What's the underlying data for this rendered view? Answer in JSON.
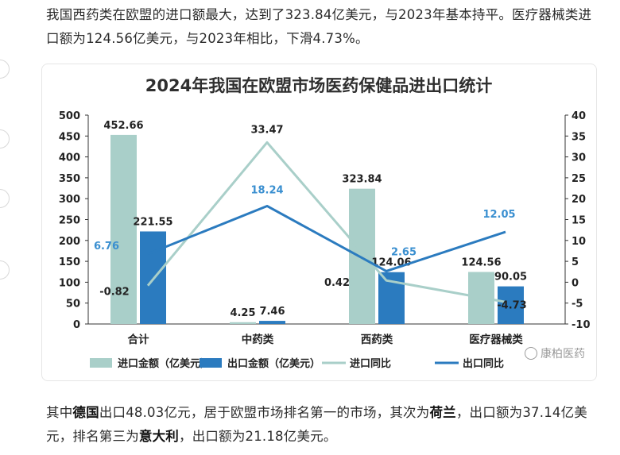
{
  "article": {
    "para_top": "我国西药类在欧盟的进口额最大，达到了323.84亿美元，与2023年基本持平。医疗器械类进口额为124.56亿美元，与2023年相比，下滑4.73%。",
    "para_bottom": {
      "p1": "其中",
      "b1": "德国",
      "p2": "出口48.03亿元，居于欧盟市场排名第一的市场，其次为",
      "b2": "荷兰",
      "p3": "，出口额为37.14亿美元，排名第三为",
      "b3": "意大利",
      "p4": "，出口额为21.18亿美元。"
    }
  },
  "watermark": "康柏医药",
  "chart_data": {
    "type": "bar",
    "title": "2024年我国在欧盟市场医药保健品进出口统计",
    "categories": [
      "合计",
      "中药类",
      "西药类",
      "医疗器械类"
    ],
    "y_left": {
      "min": 0,
      "max": 500,
      "ticks": [
        0,
        50,
        100,
        150,
        200,
        250,
        300,
        350,
        400,
        450,
        500
      ]
    },
    "y_right": {
      "min": -10,
      "max": 40,
      "ticks": [
        -10,
        -5,
        0,
        5,
        10,
        15,
        20,
        25,
        30,
        35,
        40
      ]
    },
    "bar_series": [
      {
        "name": "进口金额（亿美元）",
        "color": "#a9cfc9",
        "values": [
          452.66,
          4.25,
          323.84,
          124.56
        ],
        "labels": [
          "452.66",
          "4.25",
          "323.84",
          "124.56"
        ]
      },
      {
        "name": "出口金额（亿美元）",
        "color": "#2b7bbf",
        "values": [
          221.55,
          7.46,
          124.06,
          90.05
        ],
        "labels": [
          "221.55",
          "7.46",
          "124.06",
          "90.05"
        ]
      }
    ],
    "line_series": [
      {
        "name": "进口同比",
        "color": "#a9cfc9",
        "values": [
          -0.82,
          33.47,
          0.42,
          -4.73
        ],
        "labels": [
          "-0.82",
          "33.47",
          "0.42",
          "-4.73"
        ]
      },
      {
        "name": "出口同比",
        "color": "#2b7bbf",
        "label_color": "#3a8fd0",
        "values": [
          6.76,
          18.24,
          2.65,
          12.05
        ],
        "labels": [
          "6.76",
          "18.24",
          "2.65",
          "12.05"
        ]
      }
    ],
    "legend_position": "bottom",
    "grid": false
  }
}
